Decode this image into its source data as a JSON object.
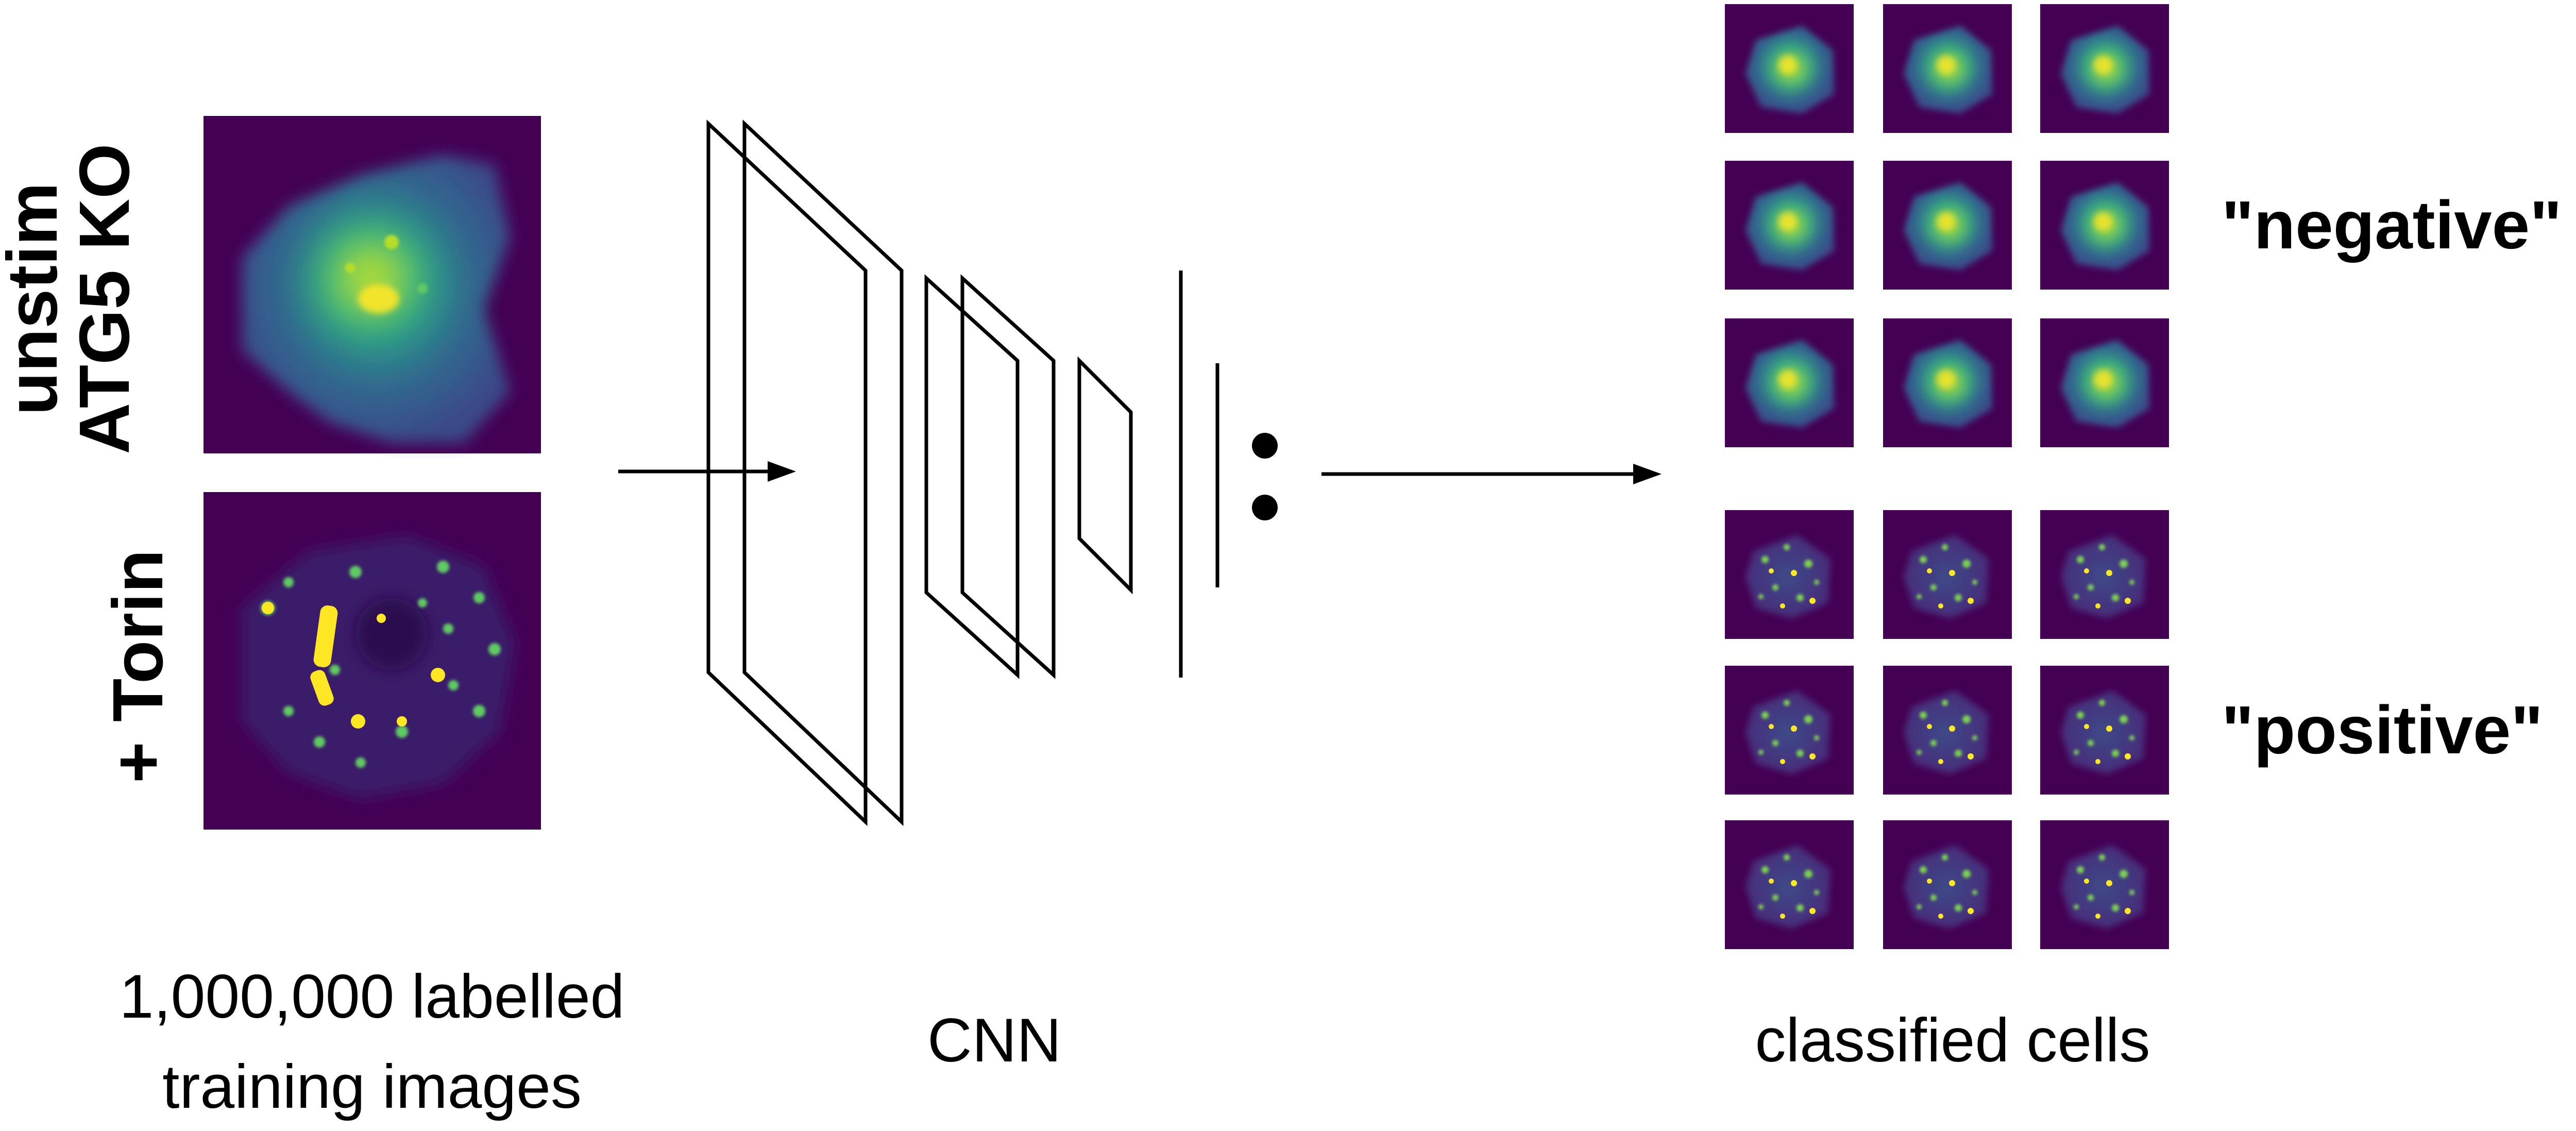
{
  "training": {
    "row_labels": [
      {
        "line1": "unstim",
        "line2": "ATG5 KO"
      },
      {
        "line1": "+ Torin",
        "line2": ""
      }
    ],
    "caption_line1": "1,000,000 labelled",
    "caption_line2": "training images"
  },
  "network": {
    "caption": "CNN"
  },
  "output": {
    "class_labels": [
      "\"negative\"",
      "\"positive\""
    ],
    "caption": "classified cells"
  },
  "colors": {
    "cell_background": "#440154",
    "cell_mid": "#2a8b8b",
    "cell_bright": "#fde725",
    "stroke": "#000000"
  },
  "icons": {
    "arrow": "right-arrow-icon",
    "ellipsis": "vertical-ellipsis-icon"
  }
}
